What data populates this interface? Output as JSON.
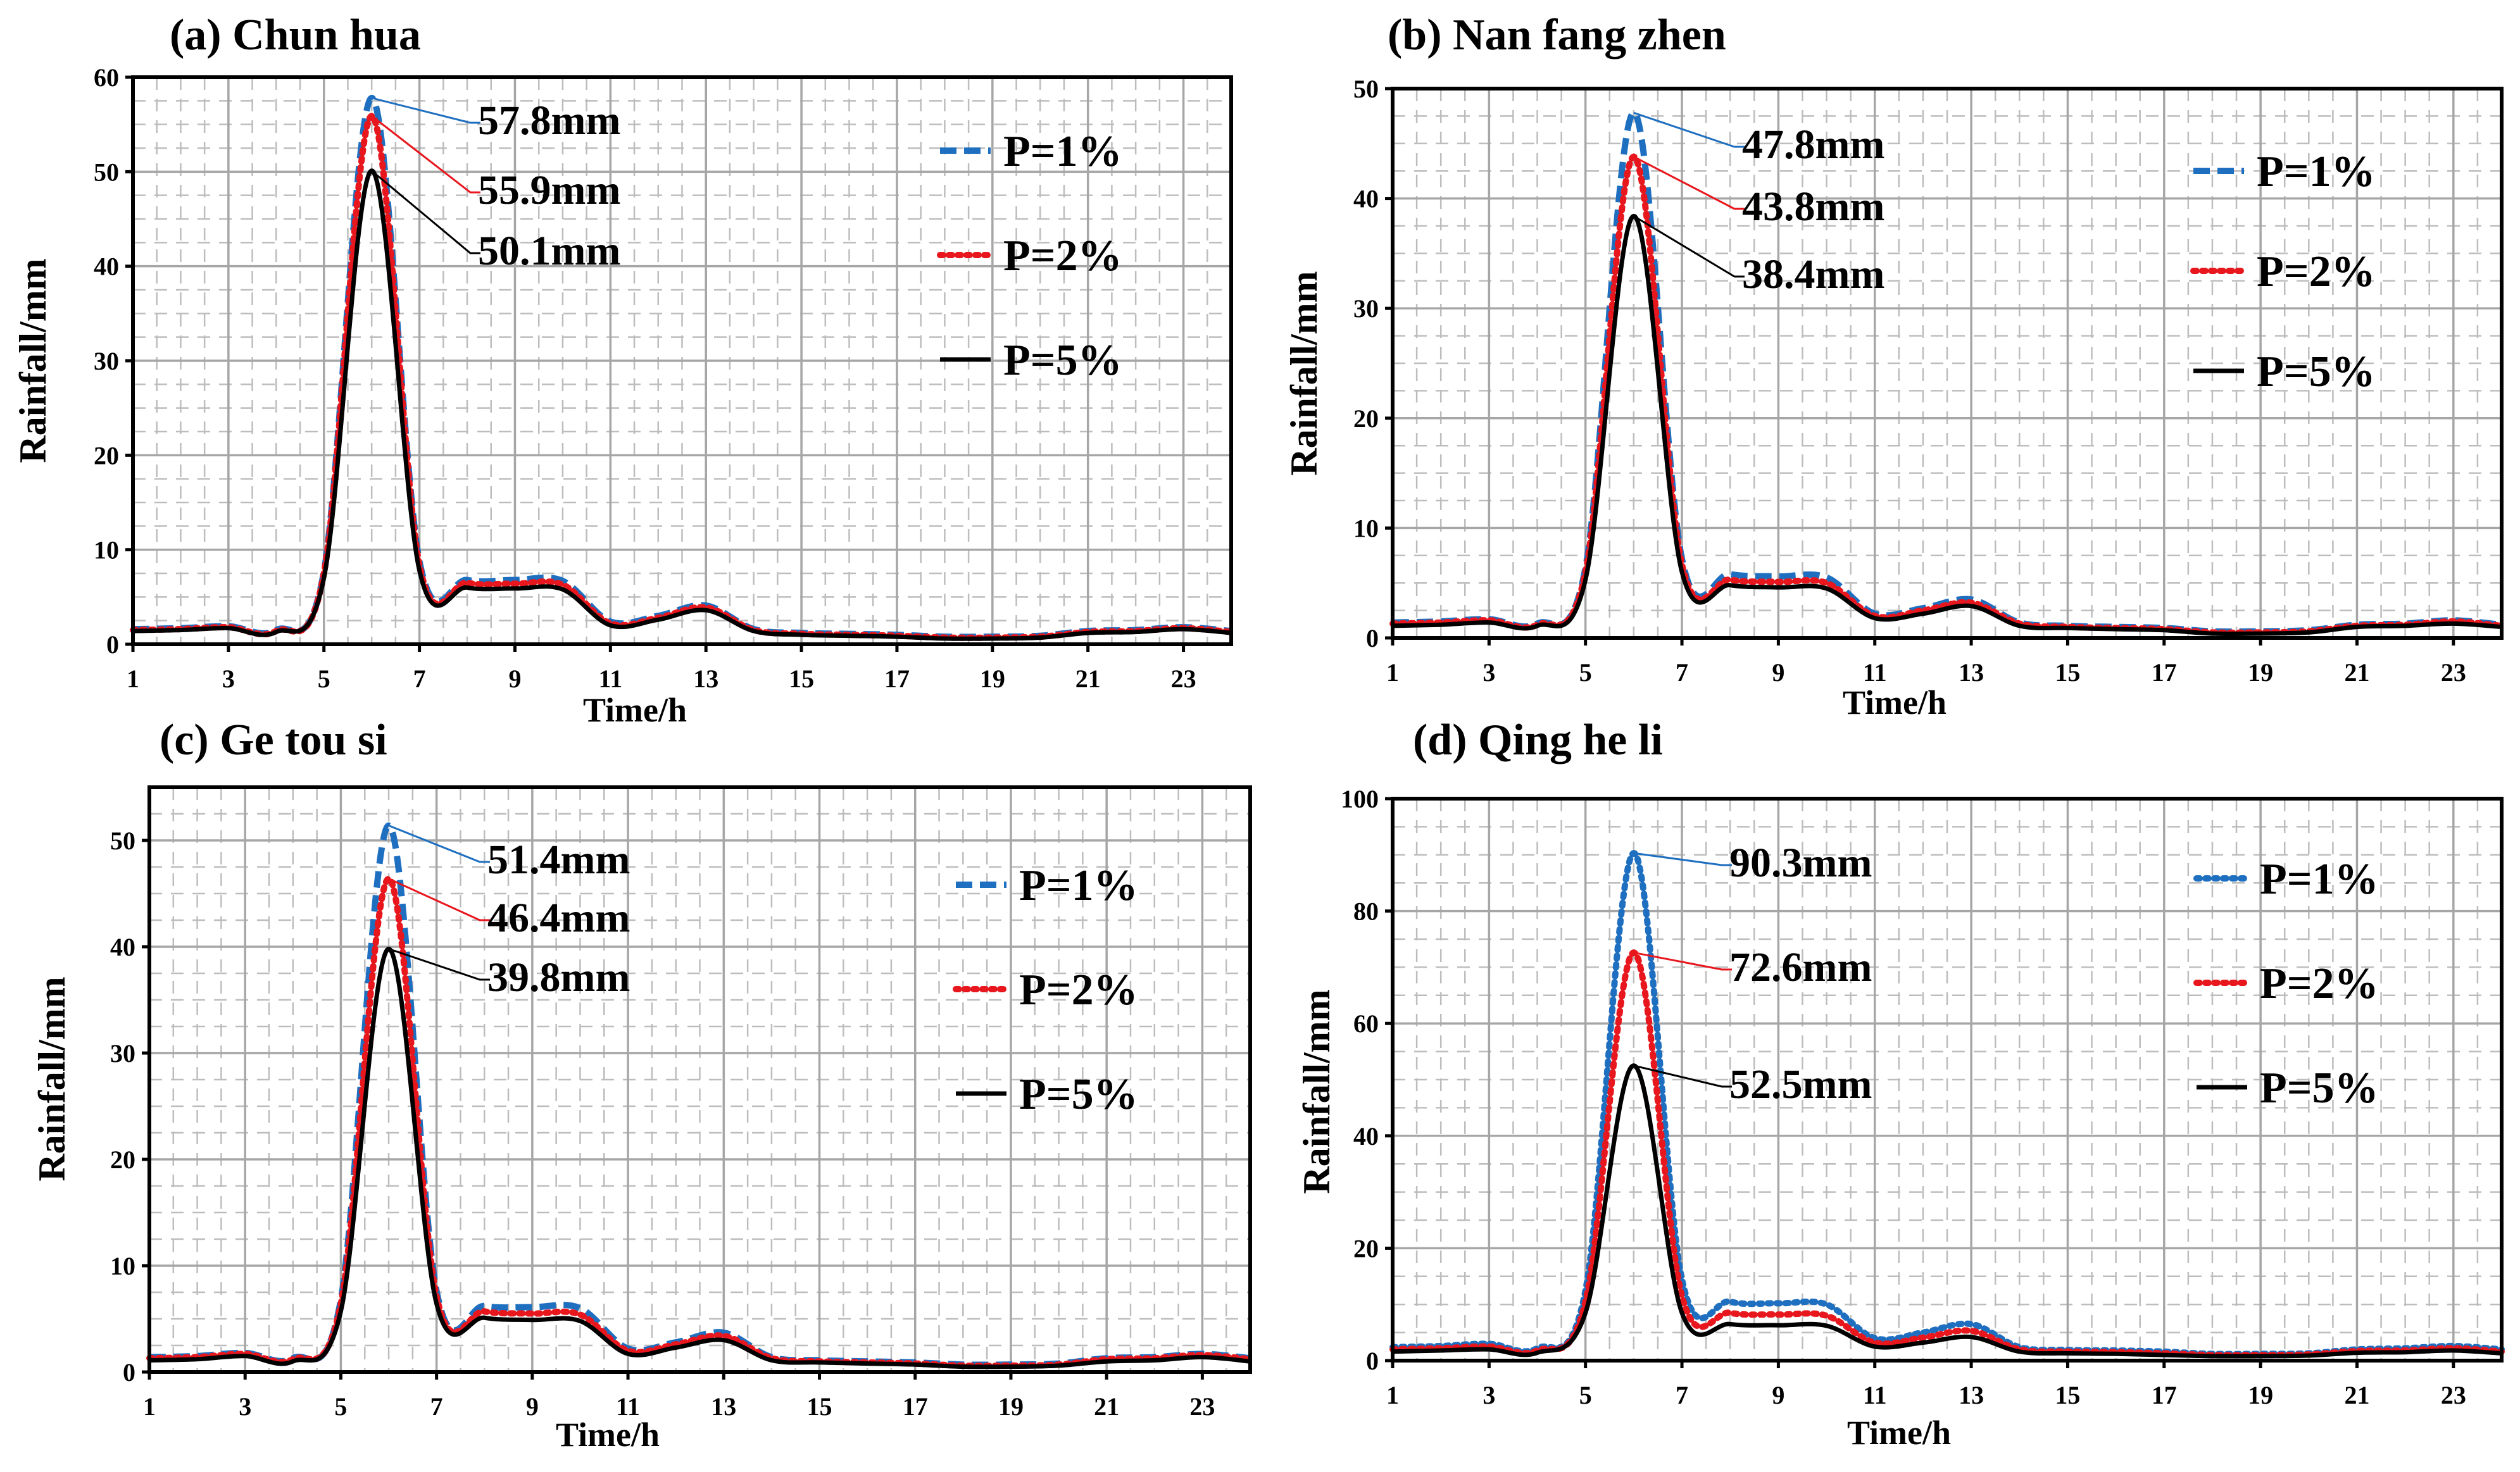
{
  "colors": {
    "p1": "#1F6FC0",
    "p2": "#E8161D",
    "p5": "#000000",
    "grid_major": "#A6A6A6",
    "grid_minor": "#BDBDBD"
  },
  "chart_data": [
    {
      "type": "line",
      "title": "(a) Chun hua",
      "xlabel": "Time/h",
      "ylabel": "Rainfall/mm",
      "xlim": [
        1,
        24
      ],
      "ylim": [
        0,
        60
      ],
      "yticks": [
        0,
        10,
        20,
        30,
        40,
        50,
        60
      ],
      "xticks": [
        1,
        3,
        5,
        7,
        9,
        11,
        13,
        15,
        17,
        19,
        21,
        23
      ],
      "x": [
        1,
        2,
        3,
        4,
        5,
        6,
        7,
        8,
        9,
        10,
        11,
        12,
        13,
        14,
        15,
        16,
        17,
        18,
        19,
        20,
        21,
        22,
        23,
        24
      ],
      "series": [
        {
          "name": "P=1%",
          "style": "dashed",
          "values": [
            1.6,
            1.7,
            1.9,
            1.5,
            7.7,
            57.8,
            8.8,
            6.8,
            6.8,
            6.7,
            2.4,
            3.0,
            4.1,
            1.6,
            1.2,
            1.1,
            1.0,
            0.8,
            0.8,
            0.9,
            1.4,
            1.5,
            1.8,
            1.4
          ]
        },
        {
          "name": "P=2%",
          "style": "dotted",
          "values": [
            1.5,
            1.6,
            1.8,
            1.4,
            7.5,
            55.9,
            8.4,
            6.5,
            6.4,
            6.3,
            2.2,
            2.8,
            3.9,
            1.5,
            1.1,
            1.0,
            0.9,
            0.7,
            0.7,
            0.8,
            1.3,
            1.4,
            1.7,
            1.3
          ]
        },
        {
          "name": "P=5%",
          "style": "solid",
          "values": [
            1.4,
            1.5,
            1.7,
            1.3,
            7.0,
            50.1,
            7.8,
            6.0,
            5.9,
            5.8,
            2.0,
            2.6,
            3.6,
            1.4,
            1.0,
            0.9,
            0.8,
            0.6,
            0.6,
            0.7,
            1.2,
            1.3,
            1.6,
            1.2
          ]
        }
      ],
      "annotations": [
        "57.8mm",
        "55.9mm",
        "50.1mm"
      ]
    },
    {
      "type": "line",
      "title": "(b) Nan fang zhen",
      "xlabel": "Time/h",
      "ylabel": "Rainfall/mm",
      "xlim": [
        1,
        24
      ],
      "ylim": [
        0,
        50
      ],
      "yticks": [
        0,
        10,
        20,
        30,
        40,
        50
      ],
      "xticks": [
        1,
        3,
        5,
        7,
        9,
        11,
        13,
        15,
        17,
        19,
        21,
        23
      ],
      "x": [
        1,
        2,
        3,
        4,
        5,
        6,
        7,
        8,
        9,
        10,
        11,
        12,
        13,
        14,
        15,
        16,
        17,
        18,
        19,
        20,
        21,
        22,
        23,
        24
      ],
      "series": [
        {
          "name": "P=1%",
          "style": "dashed",
          "values": [
            1.4,
            1.5,
            1.7,
            1.3,
            6.4,
            47.8,
            7.2,
            5.8,
            5.6,
            5.5,
            2.2,
            2.7,
            3.5,
            1.4,
            1.1,
            1.0,
            0.9,
            0.6,
            0.6,
            0.7,
            1.2,
            1.3,
            1.6,
            1.2
          ]
        },
        {
          "name": "P=2%",
          "style": "dotted",
          "values": [
            1.3,
            1.4,
            1.6,
            1.2,
            6.0,
            43.8,
            6.7,
            5.3,
            5.1,
            5.0,
            2.0,
            2.5,
            3.2,
            1.3,
            1.0,
            0.9,
            0.8,
            0.5,
            0.5,
            0.6,
            1.1,
            1.2,
            1.5,
            1.1
          ]
        },
        {
          "name": "P=5%",
          "style": "solid",
          "values": [
            1.1,
            1.2,
            1.4,
            1.1,
            5.3,
            38.4,
            6.0,
            4.8,
            4.6,
            4.5,
            1.8,
            2.2,
            2.9,
            1.1,
            0.9,
            0.8,
            0.7,
            0.4,
            0.4,
            0.5,
            1.0,
            1.1,
            1.3,
            1.0
          ]
        }
      ],
      "annotations": [
        "47.8mm",
        "43.8mm",
        "38.4mm"
      ]
    },
    {
      "type": "line",
      "title": "(c) Ge tou si",
      "xlabel": "Time/h",
      "ylabel": "Rainfall/mm",
      "xlim": [
        1,
        24
      ],
      "ylim": [
        0,
        55
      ],
      "yticks": [
        0,
        10,
        20,
        30,
        40,
        50
      ],
      "xticks": [
        1,
        3,
        5,
        7,
        9,
        11,
        13,
        15,
        17,
        19,
        21,
        23
      ],
      "x": [
        1,
        2,
        3,
        4,
        5,
        6,
        7,
        8,
        9,
        10,
        11,
        12,
        13,
        14,
        15,
        16,
        17,
        18,
        19,
        20,
        21,
        22,
        23,
        24
      ],
      "series": [
        {
          "name": "P=1%",
          "style": "dashed",
          "values": [
            1.4,
            1.5,
            1.8,
            1.3,
            6.8,
            51.4,
            7.6,
            6.2,
            6.1,
            6.0,
            2.2,
            2.8,
            3.7,
            1.4,
            1.1,
            1.0,
            0.9,
            0.7,
            0.7,
            0.8,
            1.3,
            1.4,
            1.7,
            1.3
          ]
        },
        {
          "name": "P=2%",
          "style": "dotted",
          "values": [
            1.3,
            1.4,
            1.7,
            1.2,
            6.4,
            46.4,
            7.1,
            5.7,
            5.5,
            5.4,
            2.0,
            2.6,
            3.4,
            1.3,
            1.0,
            0.9,
            0.8,
            0.6,
            0.6,
            0.7,
            1.2,
            1.3,
            1.6,
            1.2
          ]
        },
        {
          "name": "P=5%",
          "style": "solid",
          "values": [
            1.1,
            1.2,
            1.5,
            1.0,
            5.7,
            39.8,
            6.4,
            5.1,
            4.9,
            4.8,
            1.7,
            2.3,
            3.0,
            1.1,
            0.9,
            0.8,
            0.7,
            0.5,
            0.5,
            0.6,
            1.0,
            1.1,
            1.4,
            1.0
          ]
        }
      ],
      "annotations": [
        "51.4mm",
        "46.4mm",
        "39.8mm"
      ]
    },
    {
      "type": "line",
      "title": "(d) Qing he li",
      "xlabel": "Time/h",
      "ylabel": "Rainfall/mm",
      "xlim": [
        1,
        24
      ],
      "ylim": [
        0,
        100
      ],
      "yticks": [
        0,
        20,
        40,
        60,
        80,
        100
      ],
      "xticks": [
        1,
        3,
        5,
        7,
        9,
        11,
        13,
        15,
        17,
        19,
        21,
        23
      ],
      "x": [
        1,
        2,
        3,
        4,
        5,
        6,
        7,
        8,
        9,
        10,
        11,
        12,
        13,
        14,
        15,
        16,
        17,
        18,
        19,
        20,
        21,
        22,
        23,
        24
      ],
      "series": [
        {
          "name": "P=1%",
          "style": "dotted",
          "values": [
            2.4,
            2.6,
            3.0,
            2.2,
            12.5,
            90.3,
            14.5,
            10.5,
            10.2,
            10.0,
            4.0,
            5.0,
            6.5,
            2.4,
            1.9,
            1.8,
            1.6,
            1.2,
            1.2,
            1.3,
            2.0,
            2.2,
            2.6,
            2.0
          ]
        },
        {
          "name": "P=2%",
          "style": "dotted",
          "values": [
            2.0,
            2.2,
            2.5,
            1.8,
            10.5,
            72.6,
            11.5,
            8.5,
            8.2,
            8.0,
            3.2,
            4.1,
            5.3,
            2.0,
            1.6,
            1.5,
            1.3,
            1.0,
            1.0,
            1.1,
            1.7,
            1.8,
            2.2,
            1.6
          ]
        },
        {
          "name": "P=5%",
          "style": "solid",
          "values": [
            1.6,
            1.8,
            2.0,
            1.4,
            8.5,
            52.5,
            8.5,
            6.5,
            6.3,
            6.2,
            2.5,
            3.2,
            4.2,
            1.6,
            1.3,
            1.2,
            1.0,
            0.8,
            0.8,
            0.9,
            1.4,
            1.5,
            1.8,
            1.3
          ]
        }
      ],
      "annotations": [
        "90.3mm",
        "72.6mm",
        "52.5mm"
      ]
    }
  ]
}
